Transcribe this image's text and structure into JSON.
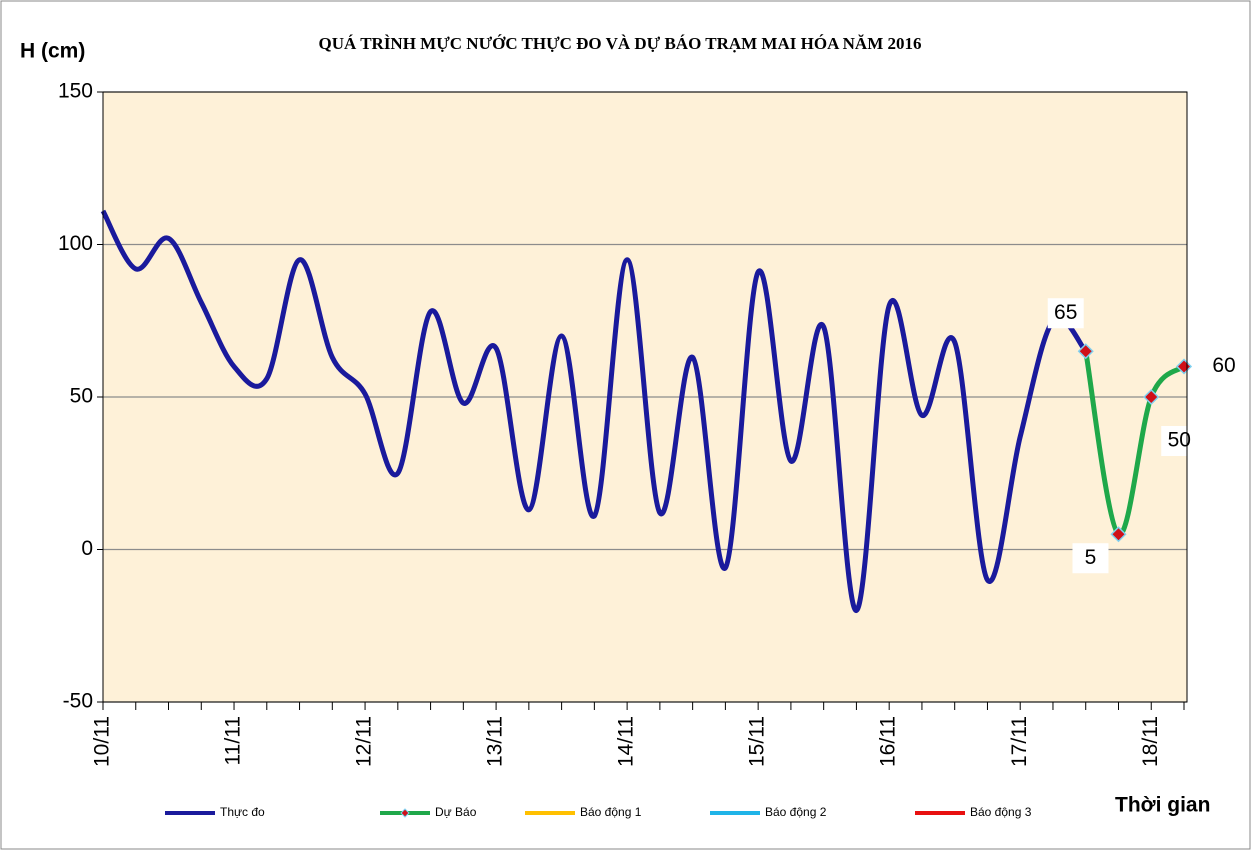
{
  "chart_data": {
    "type": "line",
    "title": "QUÁ TRÌNH MỰC NƯỚC THỰC ĐO VÀ DỰ BÁO TRẠM MAI HÓA  NĂM 2016",
    "y_label": "H (cm)",
    "x_label": "Thời gian",
    "categories": [
      "10/11",
      null,
      null,
      null,
      "11/11",
      null,
      null,
      null,
      "12/11",
      null,
      null,
      null,
      "13/11",
      null,
      null,
      null,
      "14/11",
      null,
      null,
      null,
      "15/11",
      null,
      null,
      null,
      "16/11",
      null,
      null,
      null,
      "17/11",
      null,
      null,
      null,
      "18/11",
      null
    ],
    "series": [
      {
        "name": "Thực đo",
        "color": "#1a1a9c",
        "values": [
          111,
          92,
          102,
          81,
          60,
          56,
          95,
          63,
          51,
          25,
          78,
          48,
          66,
          13,
          70,
          11,
          95,
          12,
          63,
          -6,
          91,
          29,
          73,
          -20,
          80,
          44,
          68,
          -10,
          37,
          75,
          65,
          null,
          null,
          null
        ]
      },
      {
        "name": "Dự Báo",
        "color": "#1fa84a",
        "marker": "diamond",
        "data_labels": true,
        "values": [
          null,
          null,
          null,
          null,
          null,
          null,
          null,
          null,
          null,
          null,
          null,
          null,
          null,
          null,
          null,
          null,
          null,
          null,
          null,
          null,
          null,
          null,
          null,
          null,
          null,
          null,
          null,
          null,
          null,
          null,
          65,
          5,
          50,
          60
        ]
      },
      {
        "name": "Báo động 1",
        "color": "#ffc000",
        "values": [
          null,
          null,
          null,
          null,
          null,
          null,
          null,
          null,
          null,
          null,
          null,
          null,
          null,
          null,
          null,
          null,
          null,
          null,
          null,
          null,
          null,
          null,
          null,
          null,
          null,
          null,
          null,
          null,
          null,
          null,
          null,
          null,
          null,
          null
        ]
      },
      {
        "name": "Báo động 2",
        "color": "#1fb4e8",
        "values": [
          null,
          null,
          null,
          null,
          null,
          null,
          null,
          null,
          null,
          null,
          null,
          null,
          null,
          null,
          null,
          null,
          null,
          null,
          null,
          null,
          null,
          null,
          null,
          null,
          null,
          null,
          null,
          null,
          null,
          null,
          null,
          null,
          null,
          null
        ]
      },
      {
        "name": "Báo động 3",
        "color": "#e81010",
        "values": [
          null,
          null,
          null,
          null,
          null,
          null,
          null,
          null,
          null,
          null,
          null,
          null,
          null,
          null,
          null,
          null,
          null,
          null,
          null,
          null,
          null,
          null,
          null,
          null,
          null,
          null,
          null,
          null,
          null,
          null,
          null,
          null,
          null,
          null
        ]
      }
    ],
    "ylim": [
      -50,
      150
    ],
    "yticks": [
      -50,
      0,
      50,
      100,
      150
    ],
    "grid": true,
    "legend": "bottom"
  }
}
